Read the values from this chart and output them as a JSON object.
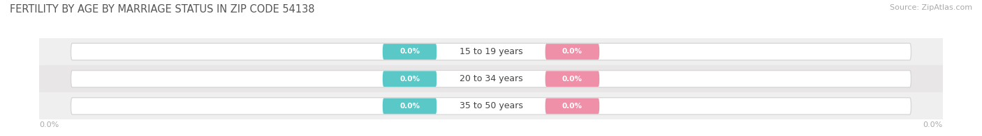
{
  "title": "FERTILITY BY AGE BY MARRIAGE STATUS IN ZIP CODE 54138",
  "source": "Source: ZipAtlas.com",
  "categories": [
    "15 to 19 years",
    "20 to 34 years",
    "35 to 50 years"
  ],
  "married_values": [
    0.0,
    0.0,
    0.0
  ],
  "unmarried_values": [
    0.0,
    0.0,
    0.0
  ],
  "married_color": "#5bc8c8",
  "unmarried_color": "#f090a8",
  "bar_bg_light": "#f0efef",
  "bar_bg_dark": "#e8e6e6",
  "title_fontsize": 10.5,
  "source_fontsize": 8,
  "value_fontsize": 7.5,
  "category_fontsize": 9,
  "legend_fontsize": 9,
  "background_color": "#ffffff",
  "axis_label_left": "0.0%",
  "axis_label_right": "0.0%",
  "axis_label_fontsize": 8,
  "axis_label_color": "#aaaaaa"
}
